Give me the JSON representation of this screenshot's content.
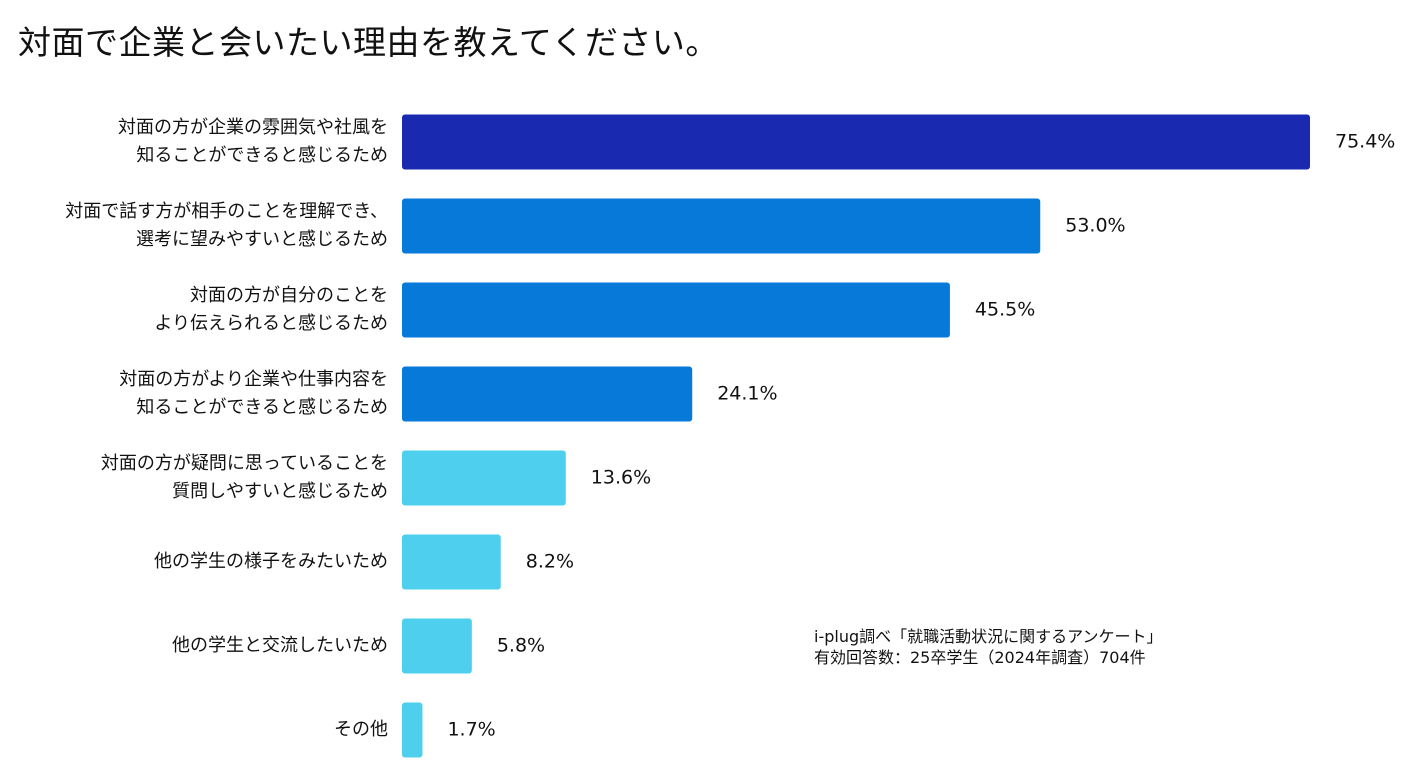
{
  "chart_data": {
    "type": "bar",
    "orientation": "horizontal",
    "title": "対面で企業と会いたい理由を教えてください。",
    "categories": [
      [
        "対面の方が企業の雰囲気や社風を",
        "知ることができると感じるため"
      ],
      [
        "対面で話す方が相手のことを理解でき、",
        "選考に望みやすいと感じるため"
      ],
      [
        "対面の方が自分のことを",
        "より伝えられると感じるため"
      ],
      [
        "対面の方がより企業や仕事内容を",
        "知ることができると感じるため"
      ],
      [
        "対面の方が疑問に思っていることを",
        "質問しやすいと感じるため"
      ],
      [
        "他の学生の様子をみたいため"
      ],
      [
        "他の学生と交流したいため"
      ],
      [
        "その他"
      ]
    ],
    "values": [
      75.4,
      53.0,
      45.5,
      24.1,
      13.6,
      8.2,
      5.8,
      1.7
    ],
    "value_labels": [
      "75.4%",
      "53.0%",
      "45.5%",
      "24.1%",
      "13.6%",
      "8.2%",
      "5.8%",
      "1.7%"
    ],
    "bar_colors": [
      "#1a2ab0",
      "#0679d9",
      "#0679d9",
      "#0679d9",
      "#4ecfee",
      "#4ecfee",
      "#4ecfee",
      "#4ecfee"
    ],
    "xlim": [
      0,
      75.4
    ],
    "xlabel": "",
    "ylabel": "",
    "grid": false,
    "legend": "none"
  },
  "source_note": {
    "line1": "i-plug調べ「就職活動状況に関するアンケート」",
    "line2": "有効回答数：25卒学生（2024年調査）704件"
  }
}
